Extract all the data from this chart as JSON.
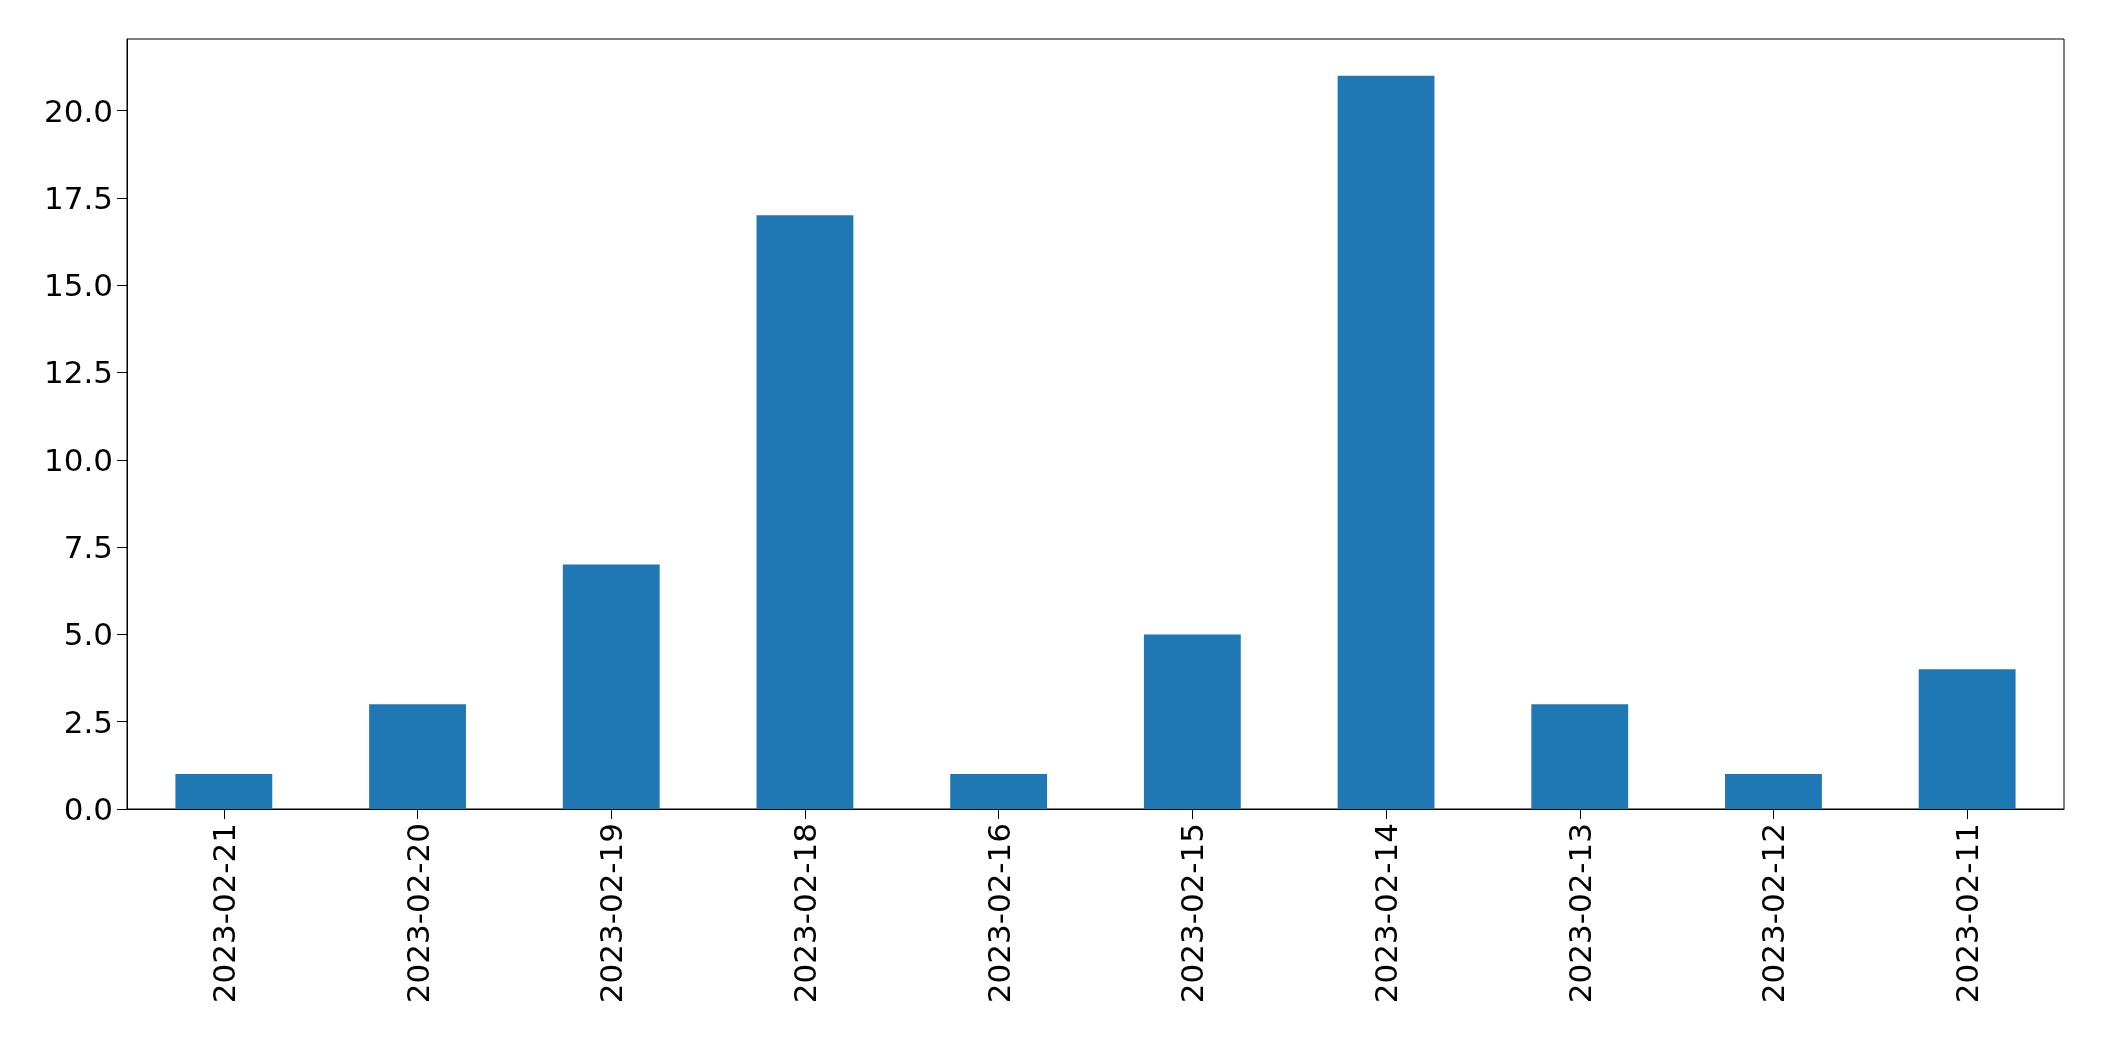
{
  "chart_data": {
    "type": "bar",
    "categories": [
      "2023-02-21",
      "2023-02-20",
      "2023-02-19",
      "2023-02-18",
      "2023-02-16",
      "2023-02-15",
      "2023-02-14",
      "2023-02-13",
      "2023-02-12",
      "2023-02-11"
    ],
    "values": [
      1,
      3,
      7,
      17,
      1,
      5,
      21,
      3,
      1,
      4
    ],
    "color": "#1f77b4",
    "ylim": [
      0,
      22.05
    ],
    "yticks": [
      {
        "value": 0,
        "label": "0.0"
      },
      2.5,
      {
        "value": 5,
        "label": "5.0"
      },
      7.5,
      {
        "value": 10,
        "label": "10.0"
      },
      12.5,
      {
        "value": 15,
        "label": "15.0"
      },
      17.5,
      {
        "value": 20,
        "label": "20.0"
      }
    ],
    "grid": false
  }
}
